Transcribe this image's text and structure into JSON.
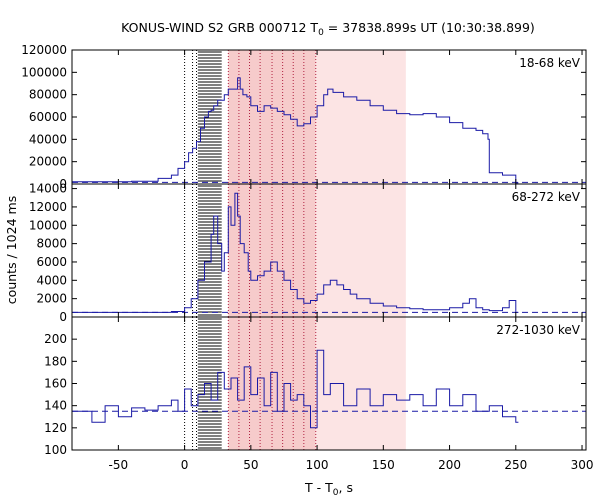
{
  "title": {
    "prefix": "KONUS-WIND S2 GRB 000712 T",
    "sub": "0",
    "suffix": " = 37838.899s UT (10:30:38.899)"
  },
  "ylabel": "counts / 1024 ms",
  "xlabel": {
    "main": "T - T",
    "sub": "0",
    "suffix": ", s"
  },
  "chart_data": {
    "type": "line",
    "xlim": [
      -85,
      303
    ],
    "x_ticks": [
      -50,
      0,
      50,
      100,
      150,
      200,
      250,
      300
    ],
    "grid": false,
    "shaded_intervals": [
      {
        "x0": 33,
        "x1": 99,
        "color": "#f6cbcb"
      },
      {
        "x0": 99,
        "x1": 167,
        "color": "#fce4e4"
      }
    ],
    "hatched_interval": {
      "x0": 10,
      "x1": 28,
      "color": "#000000"
    },
    "vlines_black_dotted": [
      0,
      6,
      9
    ],
    "vlines_red_dotted": [
      33,
      41,
      49,
      57,
      66,
      74,
      82,
      90,
      99
    ],
    "line_color": "#1a1aa6",
    "panels": [
      {
        "label": "18-68 keV",
        "ylim": [
          0,
          120000
        ],
        "y_ticks": [
          0,
          20000,
          40000,
          60000,
          80000,
          100000,
          120000
        ],
        "background": 1500,
        "series": {
          "x": [
            -85,
            -60,
            -40,
            -20,
            -10,
            -5,
            0,
            3,
            6,
            9,
            12,
            15,
            18,
            20,
            22,
            25,
            28,
            30,
            33,
            36,
            40,
            42,
            44,
            47,
            50,
            55,
            60,
            65,
            70,
            75,
            80,
            85,
            90,
            95,
            100,
            105,
            108,
            112,
            120,
            130,
            140,
            150,
            160,
            170,
            180,
            190,
            200,
            210,
            220,
            225,
            229,
            230,
            240,
            250
          ],
          "y": [
            2000,
            2000,
            2500,
            5000,
            8000,
            14000,
            20000,
            28000,
            32000,
            38000,
            50000,
            60000,
            65000,
            66000,
            70000,
            75000,
            75000,
            80000,
            85000,
            85000,
            95000,
            85000,
            80000,
            78000,
            70000,
            65000,
            70000,
            68000,
            65000,
            62000,
            58000,
            52000,
            54000,
            60000,
            70000,
            80000,
            85000,
            82000,
            78000,
            75000,
            70000,
            66000,
            63000,
            62000,
            63000,
            60000,
            55000,
            50000,
            48000,
            45000,
            40000,
            10000,
            8000,
            1000
          ]
        }
      },
      {
        "label": "68-272 keV",
        "ylim": [
          0,
          14500
        ],
        "y_ticks": [
          0,
          2000,
          4000,
          6000,
          8000,
          10000,
          12000,
          14000
        ],
        "background": 500,
        "series": {
          "x": [
            -85,
            -20,
            -10,
            0,
            5,
            10,
            15,
            20,
            22,
            25,
            28,
            30,
            33,
            35,
            38,
            40,
            42,
            45,
            48,
            50,
            55,
            60,
            65,
            70,
            75,
            80,
            85,
            90,
            95,
            100,
            105,
            110,
            115,
            120,
            125,
            130,
            140,
            150,
            160,
            170,
            180,
            190,
            200,
            210,
            215,
            220,
            225,
            230,
            240,
            245,
            250
          ],
          "y": [
            500,
            500,
            600,
            1000,
            2000,
            4000,
            6000,
            9000,
            11000,
            8000,
            5000,
            7000,
            12000,
            10000,
            13500,
            11000,
            8000,
            7000,
            5000,
            4000,
            4500,
            5000,
            6000,
            5000,
            4000,
            3000,
            2000,
            1500,
            1800,
            2500,
            3500,
            4000,
            3500,
            3000,
            2500,
            2000,
            1500,
            1200,
            1000,
            900,
            800,
            800,
            1000,
            1500,
            2000,
            1000,
            800,
            700,
            1000,
            1800,
            500
          ]
        }
      },
      {
        "label": "272-1030 keV",
        "ylim": [
          100,
          220
        ],
        "y_ticks": [
          100,
          120,
          140,
          160,
          180,
          200
        ],
        "background": 135,
        "series": {
          "x": [
            -85,
            -70,
            -60,
            -50,
            -40,
            -30,
            -20,
            -10,
            -5,
            0,
            5,
            10,
            15,
            20,
            25,
            30,
            35,
            40,
            45,
            50,
            55,
            60,
            65,
            70,
            75,
            80,
            85,
            90,
            95,
            100,
            105,
            110,
            120,
            130,
            140,
            150,
            160,
            170,
            180,
            190,
            200,
            210,
            220,
            230,
            240,
            250
          ],
          "y": [
            135,
            125,
            140,
            130,
            138,
            136,
            140,
            145,
            135,
            155,
            140,
            150,
            160,
            145,
            170,
            155,
            165,
            145,
            175,
            150,
            165,
            140,
            170,
            135,
            160,
            145,
            150,
            140,
            120,
            190,
            150,
            160,
            140,
            155,
            140,
            150,
            145,
            150,
            140,
            155,
            140,
            150,
            135,
            140,
            130,
            125
          ]
        }
      }
    ]
  }
}
